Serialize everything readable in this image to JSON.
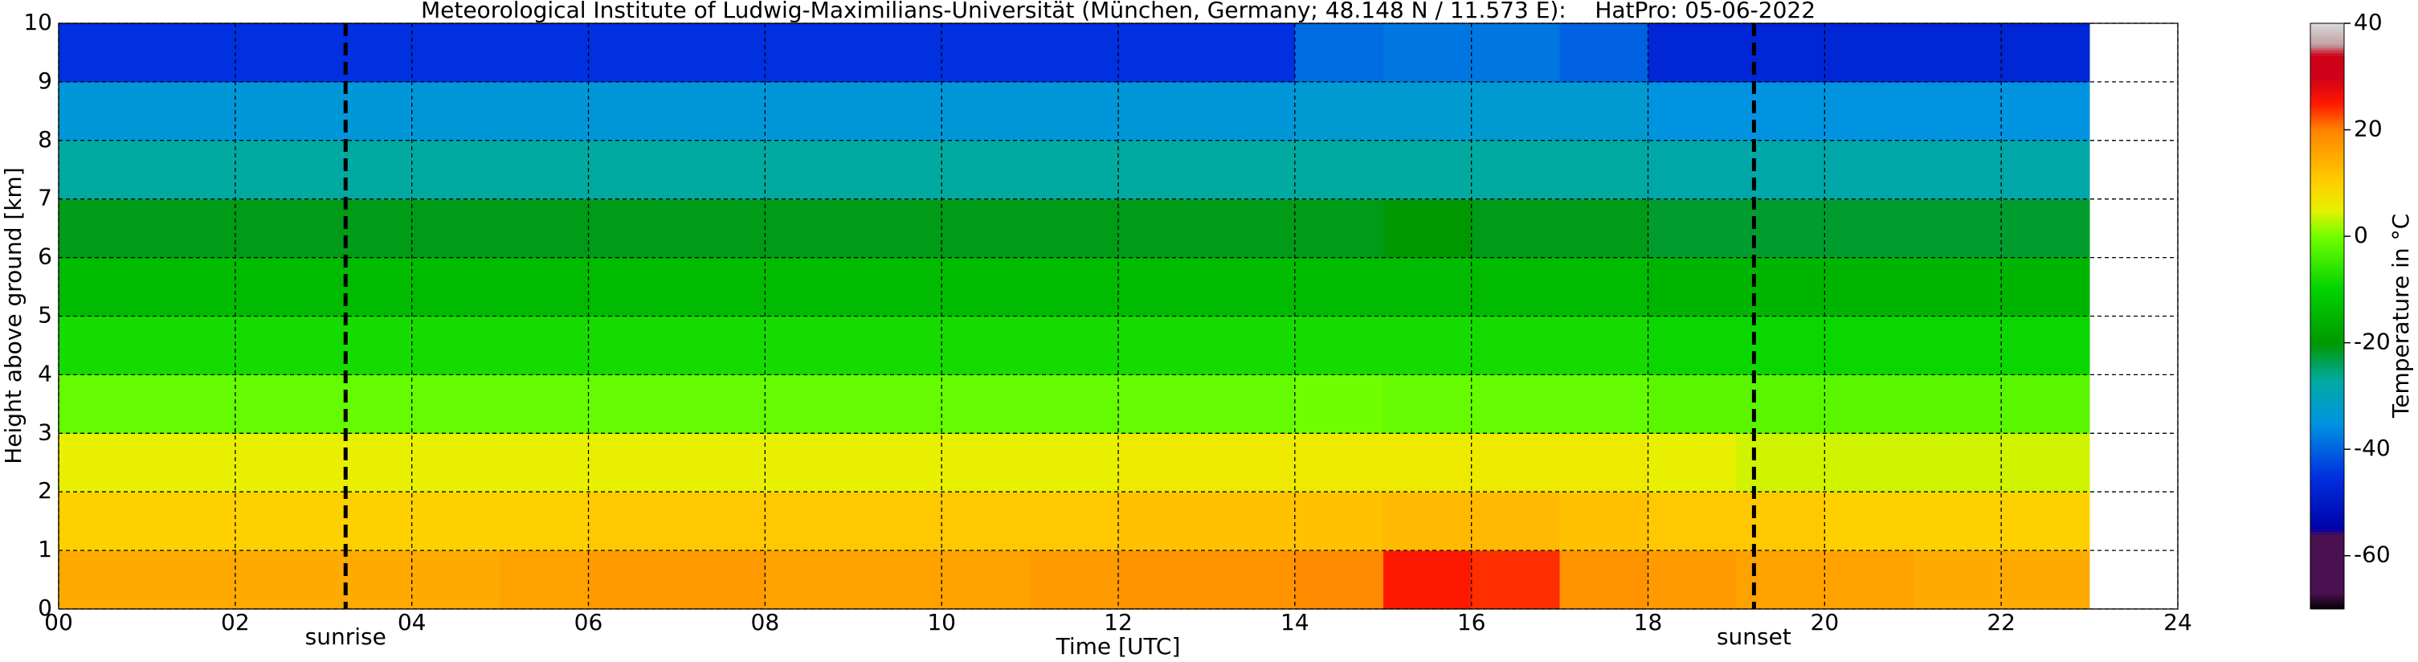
{
  "chart_data": {
    "type": "heatmap",
    "title": "Meteorological Institute of Ludwig-Maximilians-Universität (München, Germany; 48.148 N / 11.573 E):    HatPro: 05-06-2022",
    "x_label": "Time [UTC]",
    "y_label": "Height above ground [km]",
    "colorbar_label": "Temperature in °C",
    "x": [
      0,
      1,
      2,
      3,
      4,
      5,
      6,
      7,
      8,
      9,
      10,
      11,
      12,
      13,
      14,
      15,
      16,
      17,
      18,
      19,
      20,
      21,
      22,
      23
    ],
    "y": [
      0,
      1,
      2,
      3,
      4,
      5,
      6,
      7,
      8,
      9,
      10
    ],
    "z": [
      [
        15,
        15,
        15,
        15,
        15,
        16,
        17,
        17,
        16,
        16,
        16,
        17,
        18,
        18,
        19,
        25,
        24,
        18,
        17,
        16,
        16,
        15,
        15
      ],
      [
        10,
        10,
        10,
        10,
        10,
        10,
        11,
        11,
        11,
        11,
        11,
        11,
        12,
        12,
        12,
        13,
        13,
        12,
        11,
        11,
        10,
        10,
        10
      ],
      [
        5,
        5,
        5,
        5,
        5,
        5,
        5,
        5,
        5,
        5,
        5,
        5,
        6,
        6,
        6,
        6,
        6,
        6,
        5,
        4,
        4,
        4,
        4
      ],
      [
        -1,
        -1,
        -1,
        -1,
        -1,
        -1,
        -1,
        -1,
        -1,
        -1,
        -1,
        -1,
        -1,
        -1,
        0,
        -1,
        -1,
        -1,
        -2,
        -2,
        -2,
        -2,
        -2
      ],
      [
        -8,
        -8,
        -8,
        -8,
        -8,
        -8,
        -8,
        -8,
        -8,
        -8,
        -8,
        -8,
        -8,
        -8,
        -8,
        -8,
        -8,
        -8,
        -9,
        -9,
        -9,
        -9,
        -9
      ],
      [
        -14,
        -14,
        -14,
        -14,
        -14,
        -14,
        -14,
        -14,
        -14,
        -14,
        -14,
        -14,
        -14,
        -14,
        -14,
        -14,
        -14,
        -14,
        -15,
        -15,
        -15,
        -15,
        -15
      ],
      [
        -21,
        -21,
        -21,
        -21,
        -21,
        -21,
        -21,
        -21,
        -21,
        -21,
        -21,
        -21,
        -21,
        -21,
        -21,
        -20,
        -21,
        -21,
        -22,
        -22,
        -22,
        -22,
        -22
      ],
      [
        -27,
        -27,
        -27,
        -27,
        -27,
        -27,
        -27,
        -27,
        -27,
        -27,
        -27,
        -27,
        -27,
        -27,
        -27,
        -27,
        -27,
        -27,
        -28,
        -28,
        -28,
        -28,
        -28
      ],
      [
        -34,
        -34,
        -34,
        -34,
        -34,
        -34,
        -34,
        -34,
        -34,
        -34,
        -34,
        -34,
        -34,
        -34,
        -33,
        -33,
        -33,
        -33,
        -35,
        -35,
        -35,
        -35,
        -35
      ],
      [
        -45,
        -45,
        -45,
        -45,
        -45,
        -45,
        -45,
        -45,
        -45,
        -45,
        -45,
        -45,
        -45,
        -45,
        -39,
        -38,
        -38,
        -40,
        -47,
        -47,
        -47,
        -47,
        -47
      ]
    ],
    "xlim": [
      0,
      24
    ],
    "ylim": [
      0,
      10
    ],
    "clim": [
      -70,
      40
    ],
    "xticks": [
      {
        "value": 0,
        "label": "00"
      },
      {
        "value": 2,
        "label": "02"
      },
      {
        "value": 4,
        "label": "04"
      },
      {
        "value": 6,
        "label": "06"
      },
      {
        "value": 8,
        "label": "08"
      },
      {
        "value": 10,
        "label": "10"
      },
      {
        "value": 12,
        "label": "12"
      },
      {
        "value": 14,
        "label": "14"
      },
      {
        "value": 16,
        "label": "16"
      },
      {
        "value": 18,
        "label": "18"
      },
      {
        "value": 20,
        "label": "20"
      },
      {
        "value": 22,
        "label": "22"
      },
      {
        "value": 24,
        "label": "24"
      }
    ],
    "yticks": [
      0,
      1,
      2,
      3,
      4,
      5,
      6,
      7,
      8,
      9,
      10
    ],
    "cticks": [
      -60,
      -40,
      -20,
      0,
      20,
      40
    ],
    "grid": true,
    "annotations": [
      {
        "x": 3.25,
        "label": "sunrise"
      },
      {
        "x": 19.2,
        "label": "sunset"
      }
    ],
    "colorscale": [
      [
        -70,
        "#000000"
      ],
      [
        -67,
        "#4a1050"
      ],
      [
        -56,
        "#4a1050"
      ],
      [
        -55,
        "#0000a8"
      ],
      [
        -45,
        "#0030e0"
      ],
      [
        -35,
        "#0094e0"
      ],
      [
        -27,
        "#00aaa0"
      ],
      [
        -20,
        "#009800"
      ],
      [
        -10,
        "#00d200"
      ],
      [
        0,
        "#70ff00"
      ],
      [
        5,
        "#e8f000"
      ],
      [
        10,
        "#ffd000"
      ],
      [
        20,
        "#ff8400"
      ],
      [
        25,
        "#ff1800"
      ],
      [
        30,
        "#d00018"
      ],
      [
        34,
        "#d00018"
      ],
      [
        36,
        "#c0a0a0"
      ],
      [
        40,
        "#d8d8d8"
      ]
    ]
  }
}
